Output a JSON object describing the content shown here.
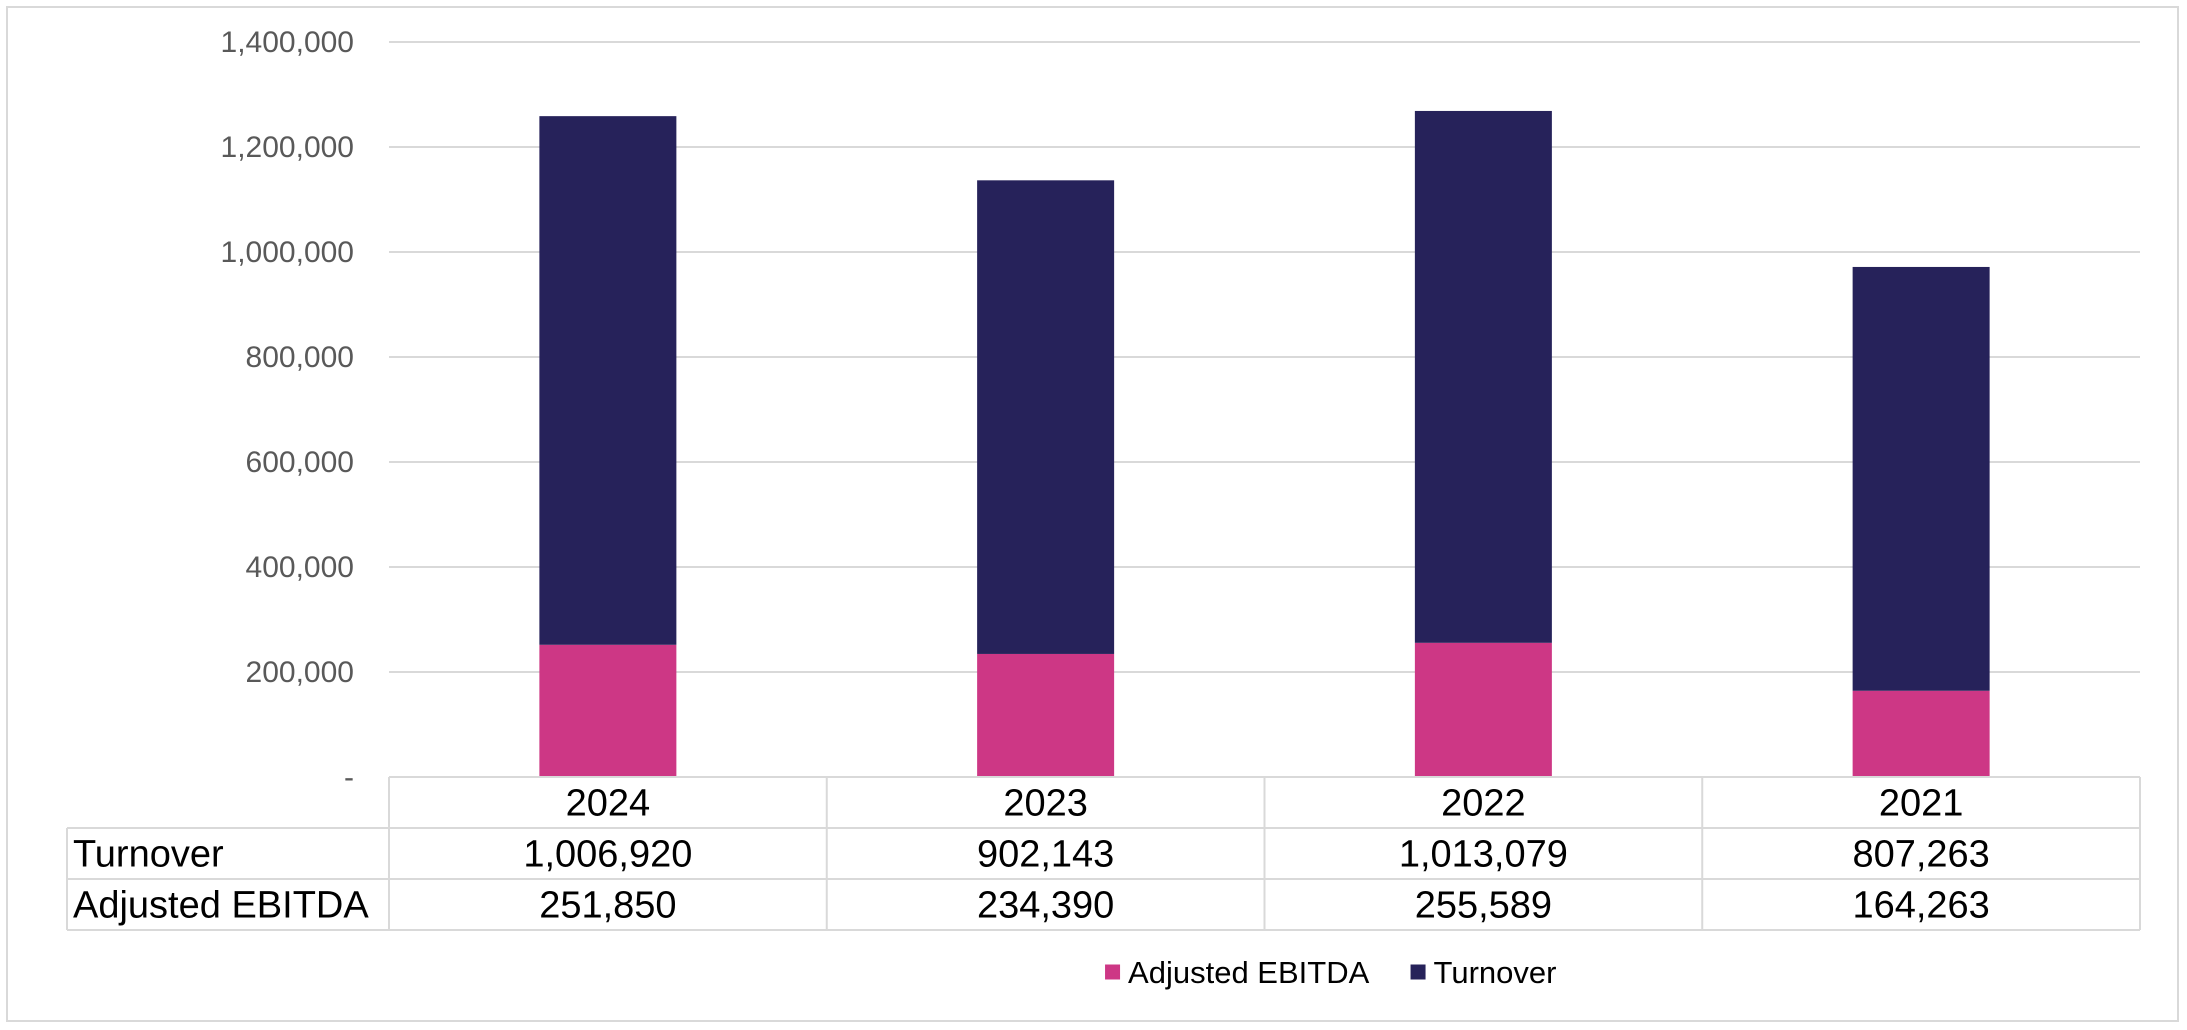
{
  "chart_data": {
    "type": "bar",
    "stacked": true,
    "categories": [
      "2024",
      "2023",
      "2022",
      "2021"
    ],
    "series": [
      {
        "name": "Adjusted EBITDA",
        "values": [
          251850,
          234390,
          255589,
          164263
        ],
        "color": "#cd3785"
      },
      {
        "name": "Turnover",
        "values": [
          1006920,
          902143,
          1013079,
          807263
        ],
        "color": "#26225a"
      }
    ],
    "ylim": [
      0,
      1400000
    ],
    "yticks": [
      0,
      200000,
      400000,
      600000,
      800000,
      1000000,
      1200000,
      1400000
    ],
    "ytick_labels": [
      "-",
      "200,000",
      "400,000",
      "600,000",
      "800,000",
      "1,000,000",
      "1,200,000",
      "1,400,000"
    ],
    "grid": true,
    "data_table": {
      "rows": [
        {
          "label": "Turnover",
          "values": [
            "1,006,920",
            "902,143",
            "1,013,079",
            "807,263"
          ]
        },
        {
          "label": "Adjusted EBITDA",
          "values": [
            "251,850",
            "234,390",
            "255,589",
            "164,263"
          ]
        }
      ]
    },
    "legend": {
      "position": "bottom",
      "entries": [
        "Adjusted EBITDA",
        "Turnover"
      ]
    }
  }
}
